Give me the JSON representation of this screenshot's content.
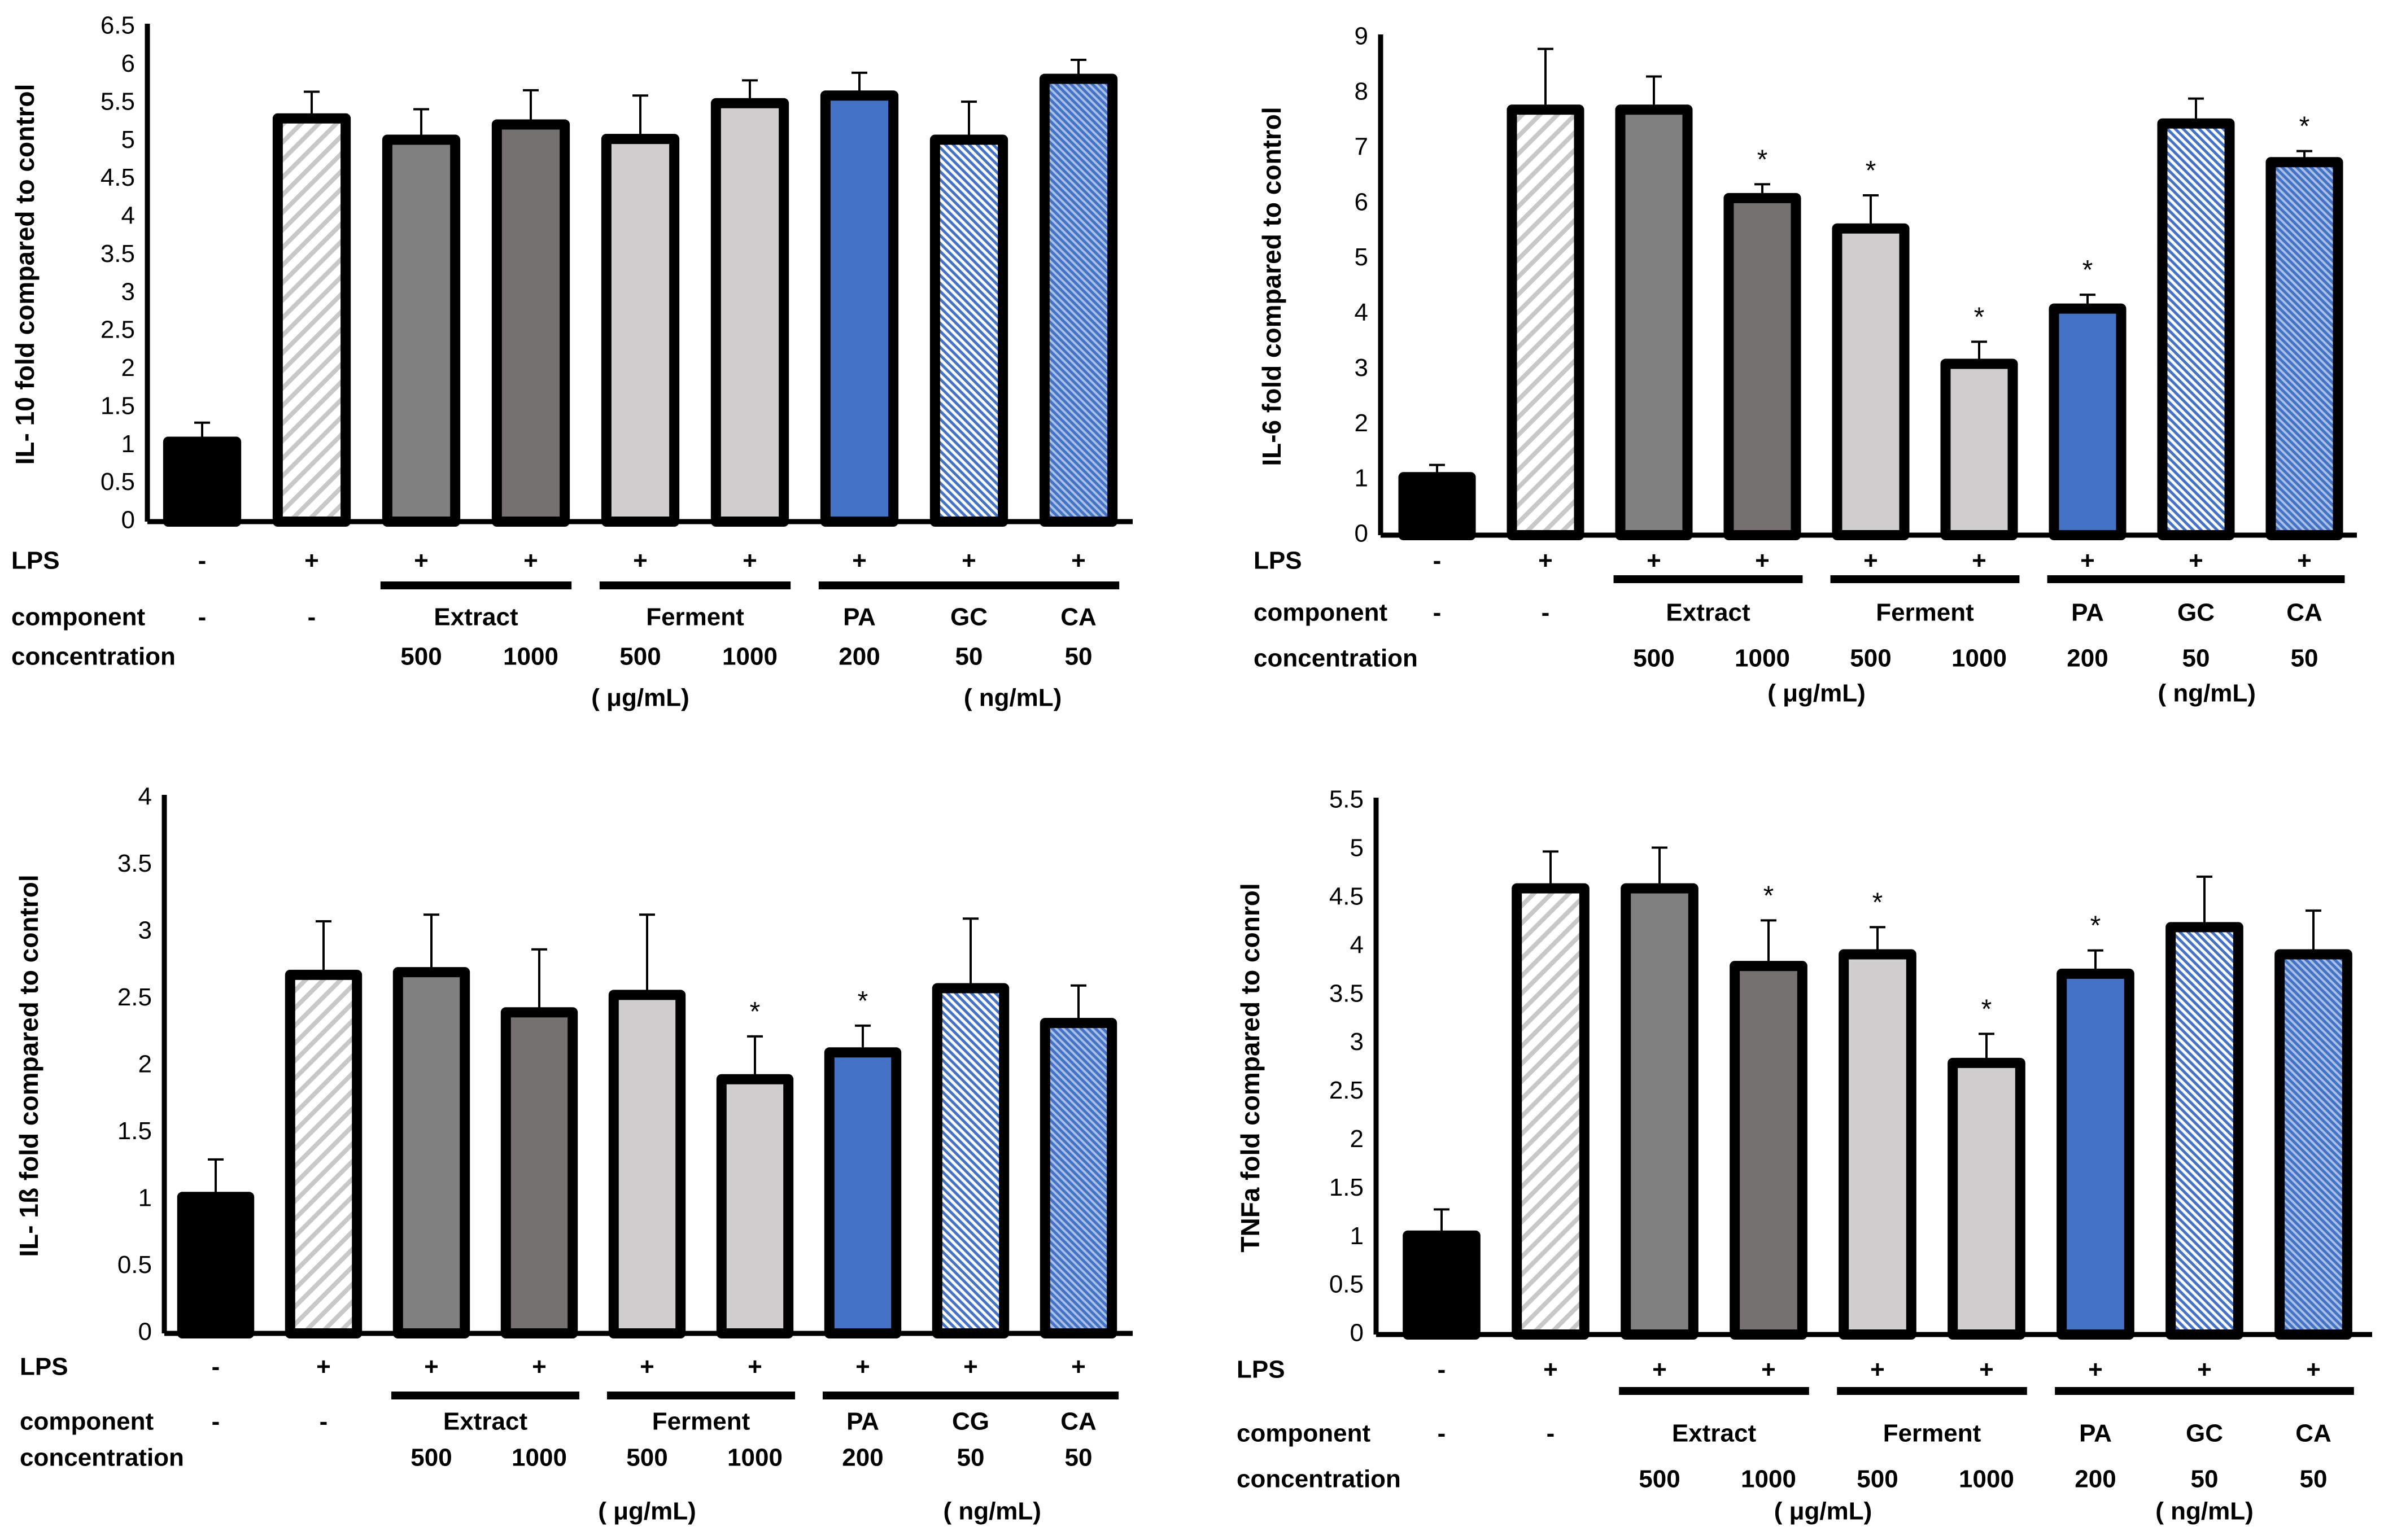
{
  "chart_data": [
    {
      "type": "bar",
      "ylabel": "IL- 10  fold compared to control",
      "ylim": [
        0,
        6.5
      ],
      "yticks": [
        "0",
        "0.5",
        "1",
        "1.5",
        "2",
        "2.5",
        "3",
        "3.5",
        "4",
        "4.5",
        "5",
        "5.5",
        "6",
        "6.5"
      ],
      "values": [
        1.05,
        5.3,
        5.02,
        5.22,
        5.03,
        5.5,
        5.6,
        5.02,
        5.82
      ],
      "errors": [
        0.25,
        0.35,
        0.4,
        0.45,
        0.57,
        0.3,
        0.3,
        0.5,
        0.25
      ],
      "significant": [
        false,
        false,
        false,
        false,
        false,
        false,
        false,
        false,
        false
      ],
      "row_labels": {
        "lps": "LPS",
        "component": "component",
        "concentration": "concentration"
      },
      "lps": [
        "-",
        "+",
        "+",
        "+",
        "+",
        "+",
        "+",
        "+",
        "+"
      ],
      "components": [
        {
          "label": "-",
          "span": [
            0,
            0
          ]
        },
        {
          "label": "-",
          "span": [
            1,
            1
          ]
        },
        {
          "label": "Extract",
          "span": [
            2,
            3
          ]
        },
        {
          "label": "Ferment",
          "span": [
            4,
            5
          ]
        },
        {
          "label": "PA",
          "span": [
            6,
            6
          ]
        },
        {
          "label": "GC",
          "span": [
            7,
            7
          ]
        },
        {
          "label": "CA",
          "span": [
            8,
            8
          ]
        }
      ],
      "concentration": [
        "",
        "",
        "500",
        "1000",
        "500",
        "1000",
        "200",
        "50",
        "50"
      ],
      "units": [
        "( μg/mL)",
        "( ng/mL)"
      ]
    },
    {
      "type": "bar",
      "ylabel": "IL-6  fold compared to control",
      "ylim": [
        0,
        9
      ],
      "yticks": [
        "0",
        "1",
        "2",
        "3",
        "4",
        "5",
        "6",
        "7",
        "8",
        "9"
      ],
      "values": [
        1.05,
        7.7,
        7.7,
        6.1,
        5.55,
        3.1,
        4.1,
        7.45,
        6.75
      ],
      "errors": [
        0.22,
        1.1,
        0.6,
        0.25,
        0.6,
        0.4,
        0.25,
        0.45,
        0.2
      ],
      "significant": [
        false,
        false,
        false,
        true,
        true,
        true,
        true,
        false,
        true
      ],
      "row_labels": {
        "lps": "LPS",
        "component": "component",
        "concentration": "concentration"
      },
      "lps": [
        "-",
        "+",
        "+",
        "+",
        "+",
        "+",
        "+",
        "+",
        "+"
      ],
      "components": [
        {
          "label": "-",
          "span": [
            0,
            0
          ]
        },
        {
          "label": "-",
          "span": [
            1,
            1
          ]
        },
        {
          "label": "Extract",
          "span": [
            2,
            3
          ]
        },
        {
          "label": "Ferment",
          "span": [
            4,
            5
          ]
        },
        {
          "label": "PA",
          "span": [
            6,
            6
          ]
        },
        {
          "label": "GC",
          "span": [
            7,
            7
          ]
        },
        {
          "label": "CA",
          "span": [
            8,
            8
          ]
        }
      ],
      "concentration": [
        "",
        "",
        "500",
        "1000",
        "500",
        "1000",
        "200",
        "50",
        "50"
      ],
      "units": [
        "( μg/mL)",
        "( ng/mL)"
      ]
    },
    {
      "type": "bar",
      "ylabel": "IL- 1ß fold compared to control",
      "ylim": [
        0,
        4
      ],
      "yticks": [
        "0",
        "0.5",
        "1",
        "1.5",
        "2",
        "2.5",
        "3",
        "3.5",
        "4"
      ],
      "values": [
        1.02,
        2.68,
        2.7,
        2.4,
        2.53,
        1.9,
        2.1,
        2.58,
        2.32
      ],
      "errors": [
        0.28,
        0.4,
        0.43,
        0.47,
        0.6,
        0.32,
        0.2,
        0.52,
        0.28
      ],
      "significant": [
        false,
        false,
        false,
        false,
        false,
        true,
        true,
        false,
        false
      ],
      "row_labels": {
        "lps": "LPS",
        "component": "component",
        "concentration": "concentration"
      },
      "lps": [
        "-",
        "+",
        "+",
        "+",
        "+",
        "+",
        "+",
        "+",
        "+"
      ],
      "components": [
        {
          "label": "-",
          "span": [
            0,
            0
          ]
        },
        {
          "label": "-",
          "span": [
            1,
            1
          ]
        },
        {
          "label": "Extract",
          "span": [
            2,
            3
          ]
        },
        {
          "label": "Ferment",
          "span": [
            4,
            5
          ]
        },
        {
          "label": "PA",
          "span": [
            6,
            6
          ]
        },
        {
          "label": "CG",
          "span": [
            7,
            7
          ]
        },
        {
          "label": "CA",
          "span": [
            8,
            8
          ]
        }
      ],
      "concentration": [
        "",
        "",
        "500",
        "1000",
        "500",
        "1000",
        "200",
        "50",
        "50"
      ],
      "units": [
        "( μg/mL)",
        "( ng/mL)"
      ]
    },
    {
      "type": "bar",
      "ylabel": "TNFa  fold compared to conrol",
      "ylim": [
        0,
        5.5
      ],
      "yticks": [
        "0",
        "0.5",
        "1",
        "1.5",
        "2",
        "2.5",
        "3",
        "3.5",
        "4",
        "4.5",
        "5",
        "5.5"
      ],
      "values": [
        1.02,
        4.6,
        4.6,
        3.8,
        3.92,
        2.8,
        3.72,
        4.2,
        3.92
      ],
      "errors": [
        0.27,
        0.38,
        0.42,
        0.47,
        0.28,
        0.3,
        0.24,
        0.52,
        0.45
      ],
      "significant": [
        false,
        false,
        false,
        true,
        true,
        true,
        true,
        false,
        false
      ],
      "row_labels": {
        "lps": "LPS",
        "component": "component",
        "concentration": "concentration"
      },
      "lps": [
        "-",
        "+",
        "+",
        "+",
        "+",
        "+",
        "+",
        "+",
        "+"
      ],
      "components": [
        {
          "label": "-",
          "span": [
            0,
            0
          ]
        },
        {
          "label": "-",
          "span": [
            1,
            1
          ]
        },
        {
          "label": "Extract",
          "span": [
            2,
            3
          ]
        },
        {
          "label": "Ferment",
          "span": [
            4,
            5
          ]
        },
        {
          "label": "PA",
          "span": [
            6,
            6
          ]
        },
        {
          "label": "GC",
          "span": [
            7,
            7
          ]
        },
        {
          "label": "CA",
          "span": [
            8,
            8
          ]
        }
      ],
      "concentration": [
        "",
        "",
        "500",
        "1000",
        "500",
        "1000",
        "200",
        "50",
        "50"
      ],
      "units": [
        "( μg/mL)",
        "( ng/mL)"
      ]
    }
  ],
  "colors": {
    "control": "#000000",
    "lps_hatch": "#c8c8c8",
    "extract_500": "#808080",
    "extract_1000": "#767171",
    "ferment": "#d0cece",
    "pa": "#4472c4",
    "gc_hatch": "#4472c4",
    "ca_hatch": "#4472c4",
    "stroke": "#000000"
  }
}
